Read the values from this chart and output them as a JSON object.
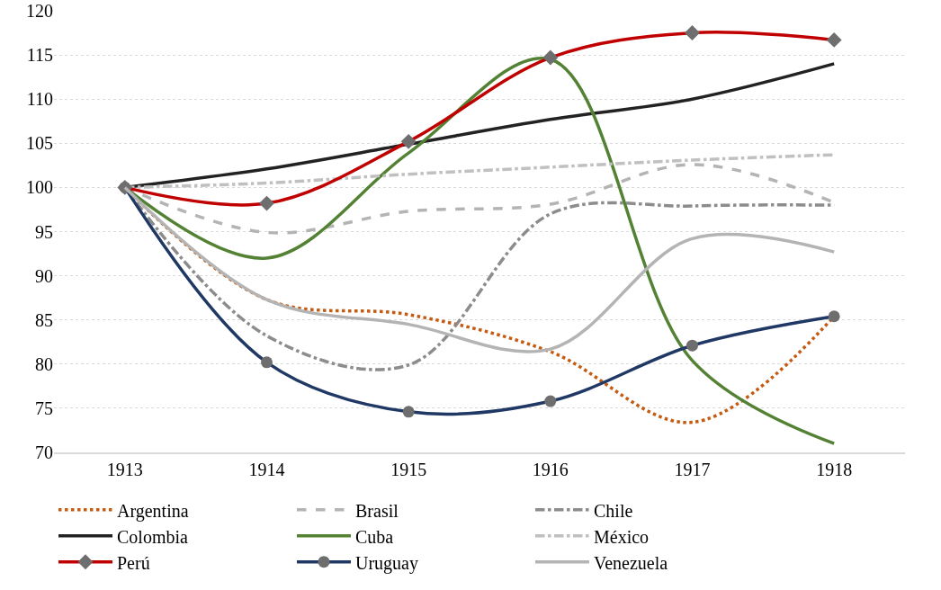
{
  "chart_data": {
    "type": "line",
    "categories": [
      "1913",
      "1914",
      "1915",
      "1916",
      "1917",
      "1918"
    ],
    "ylim": [
      70,
      120
    ],
    "yticks": [
      70,
      75,
      80,
      85,
      90,
      95,
      100,
      105,
      110,
      115,
      120
    ],
    "grid": "y",
    "legend": "bottom",
    "series": [
      {
        "name": "Argentina",
        "color": "#c55a11",
        "line_style": "dotted",
        "marker": "none",
        "values": [
          100,
          87.3,
          85.6,
          81.4,
          73.4,
          85.4
        ]
      },
      {
        "name": "Brasil",
        "color": "#b4b4b4",
        "line_style": "dashed",
        "marker": "none",
        "values": [
          100,
          94.9,
          97.3,
          98.1,
          102.6,
          98.3
        ]
      },
      {
        "name": "Chile",
        "color": "#8c8c8c",
        "line_style": "dashdot",
        "marker": "none",
        "values": [
          100,
          83.2,
          79.9,
          97,
          97.9,
          98
        ]
      },
      {
        "name": "Colombia",
        "color": "#222222",
        "line_style": "solid",
        "marker": "none",
        "values": [
          100,
          102.1,
          104.9,
          107.7,
          110,
          114
        ]
      },
      {
        "name": "Cuba",
        "color": "#548235",
        "line_style": "solid",
        "marker": "none",
        "values": [
          100,
          92,
          103.9,
          114.5,
          80.4,
          71
        ]
      },
      {
        "name": "México",
        "color": "#c0c0c0",
        "line_style": "dashdot",
        "marker": "none",
        "values": [
          100,
          100.5,
          101.5,
          102.3,
          103.1,
          103.7
        ]
      },
      {
        "name": "Perú",
        "color": "#c00000",
        "line_style": "solid",
        "marker": "diamond",
        "values": [
          100,
          98.2,
          105.2,
          114.7,
          117.5,
          116.7
        ]
      },
      {
        "name": "Uruguay",
        "color": "#203864",
        "line_style": "solid",
        "marker": "circle",
        "values": [
          100,
          80.2,
          74.6,
          75.8,
          82.1,
          85.4
        ]
      },
      {
        "name": "Venezuela",
        "color": "#b4b4b4",
        "line_style": "solid",
        "marker": "none",
        "values": [
          100,
          87.3,
          84.5,
          81.7,
          94.2,
          92.7
        ]
      }
    ]
  }
}
